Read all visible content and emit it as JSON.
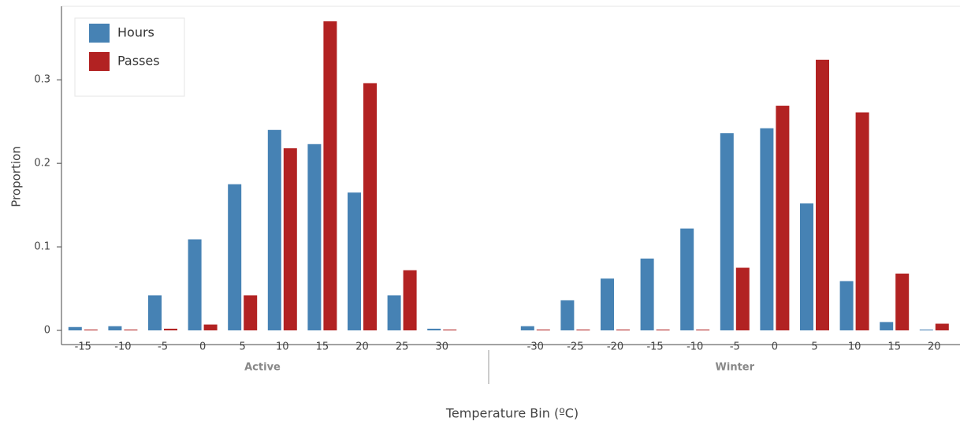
{
  "chart_data": {
    "type": "bar",
    "x_label": "Temperature Bin (ºC)",
    "y_label": "Proportion",
    "ylim": [
      -0.017,
      0.388
    ],
    "yticks": [
      0,
      0.1,
      0.2,
      0.3
    ],
    "legend": [
      {
        "name": "Hours",
        "color": "#4682b4"
      },
      {
        "name": "Passes",
        "color": "#b22222"
      }
    ],
    "legend_position": "upper left",
    "groups": [
      {
        "name": "Active",
        "categories": [
          "-15",
          "-10",
          "-5",
          "0",
          "5",
          "10",
          "15",
          "20",
          "25",
          "30"
        ],
        "series": [
          {
            "values": [
              0.004,
              0.005,
              0.042,
              0.109,
              0.175,
              0.24,
              0.223,
              0.165,
              0.042,
              0.002
            ]
          },
          {
            "values": [
              0.001,
              0.001,
              0.002,
              0.007,
              0.042,
              0.218,
              0.37,
              0.296,
              0.072,
              0.001
            ]
          }
        ]
      },
      {
        "name": "Winter",
        "categories": [
          "-30",
          "-25",
          "-20",
          "-15",
          "-10",
          "-5",
          "0",
          "5",
          "10",
          "15",
          "20"
        ],
        "series": [
          {
            "values": [
              0.005,
              0.036,
              0.062,
              0.086,
              0.122,
              0.236,
              0.242,
              0.152,
              0.059,
              0.01,
              0.001
            ]
          },
          {
            "values": [
              0.001,
              0.001,
              0.001,
              0.001,
              0.001,
              0.075,
              0.269,
              0.324,
              0.261,
              0.068,
              0.008
            ]
          }
        ]
      }
    ]
  }
}
